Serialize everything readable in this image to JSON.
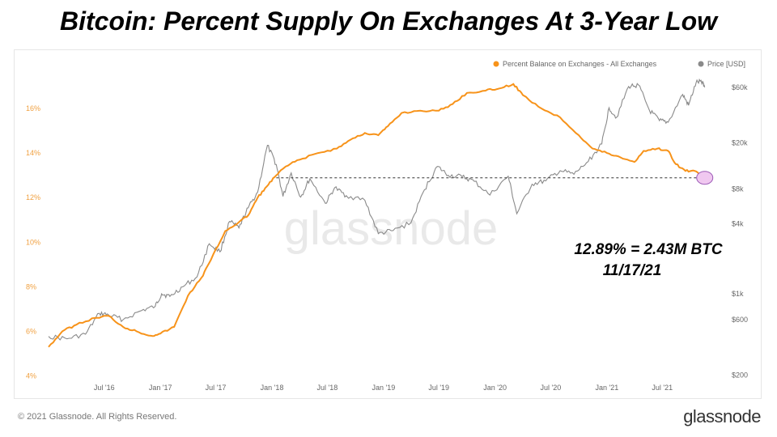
{
  "title": "Bitcoin: Percent Supply On Exchanges At 3-Year Low",
  "watermark": "glassnode",
  "footer": {
    "copyright": "© 2021 Glassnode. All Rights Reserved.",
    "logo": "glassnode"
  },
  "annotation": {
    "line1": "12.89% = 2.43M BTC",
    "line2": "11/17/21"
  },
  "colors": {
    "orange": "#f7931a",
    "gray": "#8a8a8a",
    "marker_fill": "#f0c8f0",
    "marker_stroke": "#9b59b6"
  },
  "chart_data": {
    "type": "line",
    "legend": {
      "placement": "top-right",
      "items": [
        "Percent Balance on Exchanges - All Exchanges",
        "Price [USD]"
      ]
    },
    "x_ticks": [
      "Jul '16",
      "Jan '17",
      "Jul '17",
      "Jan '18",
      "Jul '18",
      "Jan '19",
      "Jul '19",
      "Jan '20",
      "Jul '20",
      "Jan '21",
      "Jul '21"
    ],
    "x_tick_dates": [
      "2016-07-01",
      "2017-01-01",
      "2017-07-01",
      "2018-01-01",
      "2018-07-01",
      "2019-01-01",
      "2019-07-01",
      "2020-01-01",
      "2020-07-01",
      "2021-01-01",
      "2021-07-01"
    ],
    "xlim": [
      "2016-01-01",
      "2021-12-01"
    ],
    "left_axis": {
      "ticks": [
        "4%",
        "6%",
        "8%",
        "10%",
        "12%",
        "14%",
        "16%"
      ],
      "values": [
        4,
        6,
        8,
        10,
        12,
        14,
        16
      ],
      "ylim": [
        3.8,
        17.6
      ]
    },
    "right_axis": {
      "scale": "log",
      "ticks": [
        "$200",
        "$600",
        "$1k",
        "$4k",
        "$8k",
        "$20k",
        "$60k"
      ],
      "values": [
        200,
        600,
        1000,
        4000,
        8000,
        20000,
        60000
      ],
      "ylim": [
        180,
        80000
      ]
    },
    "series": [
      {
        "name": "Percent Balance on Exchanges - All Exchanges",
        "axis": "left",
        "points": [
          [
            "2016-01-01",
            5.3
          ],
          [
            "2016-02-15",
            6.0
          ],
          [
            "2016-04-01",
            6.3
          ],
          [
            "2016-06-01",
            6.6
          ],
          [
            "2016-07-15",
            6.7
          ],
          [
            "2016-09-01",
            6.2
          ],
          [
            "2016-10-15",
            6.0
          ],
          [
            "2016-12-01",
            5.8
          ],
          [
            "2017-01-01",
            5.9
          ],
          [
            "2017-02-15",
            6.2
          ],
          [
            "2017-04-01",
            7.6
          ],
          [
            "2017-05-15",
            8.4
          ],
          [
            "2017-06-15",
            9.2
          ],
          [
            "2017-08-01",
            10.5
          ],
          [
            "2017-09-15",
            10.9
          ],
          [
            "2017-10-15",
            11.2
          ],
          [
            "2017-11-15",
            12.0
          ],
          [
            "2017-12-15",
            12.5
          ],
          [
            "2018-01-15",
            13.0
          ],
          [
            "2018-02-15",
            13.4
          ],
          [
            "2018-04-01",
            13.7
          ],
          [
            "2018-06-01",
            14.0
          ],
          [
            "2018-08-01",
            14.2
          ],
          [
            "2018-09-15",
            14.6
          ],
          [
            "2018-11-01",
            14.9
          ],
          [
            "2018-12-15",
            14.8
          ],
          [
            "2019-01-15",
            15.2
          ],
          [
            "2019-03-01",
            15.8
          ],
          [
            "2019-05-01",
            15.9
          ],
          [
            "2019-07-01",
            15.9
          ],
          [
            "2019-08-15",
            16.2
          ],
          [
            "2019-10-01",
            16.7
          ],
          [
            "2019-12-01",
            16.8
          ],
          [
            "2020-01-15",
            16.9
          ],
          [
            "2020-03-01",
            17.1
          ],
          [
            "2020-04-01",
            16.6
          ],
          [
            "2020-06-01",
            16.0
          ],
          [
            "2020-08-01",
            15.6
          ],
          [
            "2020-10-01",
            14.8
          ],
          [
            "2020-11-15",
            14.2
          ],
          [
            "2021-01-01",
            14.0
          ],
          [
            "2021-02-15",
            13.8
          ],
          [
            "2021-04-01",
            13.6
          ],
          [
            "2021-05-01",
            14.1
          ],
          [
            "2021-06-15",
            14.2
          ],
          [
            "2021-07-20",
            14.1
          ],
          [
            "2021-08-15",
            13.5
          ],
          [
            "2021-09-15",
            13.2
          ],
          [
            "2021-10-15",
            13.2
          ],
          [
            "2021-11-17",
            12.89
          ]
        ]
      },
      {
        "name": "Price [USD]",
        "axis": "right",
        "points": [
          [
            "2016-01-01",
            430
          ],
          [
            "2016-03-01",
            410
          ],
          [
            "2016-05-01",
            450
          ],
          [
            "2016-06-15",
            680
          ],
          [
            "2016-07-15",
            660
          ],
          [
            "2016-09-01",
            600
          ],
          [
            "2016-11-01",
            720
          ],
          [
            "2016-12-15",
            780
          ],
          [
            "2017-01-05",
            1000
          ],
          [
            "2017-02-01",
            950
          ],
          [
            "2017-03-15",
            1150
          ],
          [
            "2017-05-01",
            1400
          ],
          [
            "2017-06-10",
            2700
          ],
          [
            "2017-07-15",
            2300
          ],
          [
            "2017-08-15",
            4200
          ],
          [
            "2017-09-15",
            3700
          ],
          [
            "2017-10-15",
            5500
          ],
          [
            "2017-11-15",
            7500
          ],
          [
            "2017-12-17",
            19000
          ],
          [
            "2018-01-15",
            13000
          ],
          [
            "2018-02-06",
            6900
          ],
          [
            "2018-03-05",
            11000
          ],
          [
            "2018-04-05",
            6800
          ],
          [
            "2018-05-05",
            9800
          ],
          [
            "2018-06-25",
            6000
          ],
          [
            "2018-07-25",
            8200
          ],
          [
            "2018-09-01",
            7000
          ],
          [
            "2018-11-01",
            6400
          ],
          [
            "2018-12-15",
            3300
          ],
          [
            "2019-02-01",
            3500
          ],
          [
            "2019-04-01",
            4100
          ],
          [
            "2019-05-15",
            7900
          ],
          [
            "2019-06-26",
            12500
          ],
          [
            "2019-08-01",
            10500
          ],
          [
            "2019-09-15",
            10200
          ],
          [
            "2019-10-25",
            9300
          ],
          [
            "2019-12-15",
            7100
          ],
          [
            "2020-02-13",
            10300
          ],
          [
            "2020-03-12",
            4900
          ],
          [
            "2020-05-01",
            8800
          ],
          [
            "2020-06-15",
            9400
          ],
          [
            "2020-08-01",
            11500
          ],
          [
            "2020-09-15",
            10700
          ],
          [
            "2020-11-01",
            13800
          ],
          [
            "2020-12-15",
            19500
          ],
          [
            "2021-01-08",
            40000
          ],
          [
            "2021-02-01",
            33000
          ],
          [
            "2021-03-13",
            61000
          ],
          [
            "2021-04-14",
            63000
          ],
          [
            "2021-05-20",
            38000
          ],
          [
            "2021-06-22",
            31000
          ],
          [
            "2021-07-20",
            30000
          ],
          [
            "2021-09-06",
            52000
          ],
          [
            "2021-09-25",
            42000
          ],
          [
            "2021-10-20",
            66000
          ],
          [
            "2021-11-10",
            67500
          ],
          [
            "2021-11-17",
            60000
          ]
        ]
      }
    ],
    "highlight_point": {
      "date": "2021-11-17",
      "value": 12.89
    }
  }
}
